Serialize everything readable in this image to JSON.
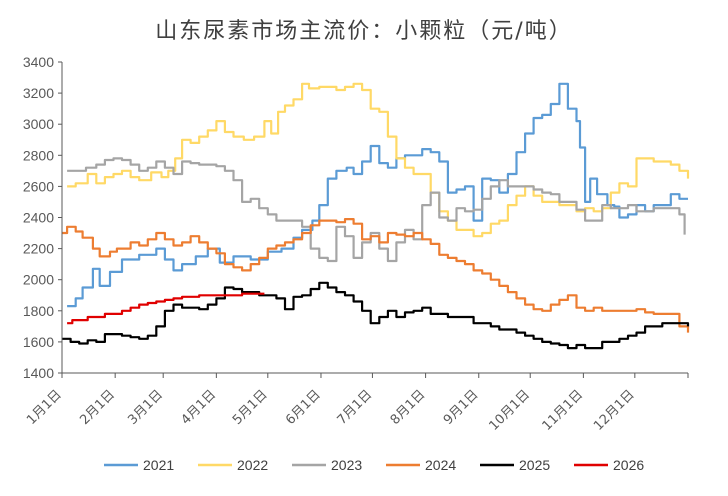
{
  "chart_data": {
    "type": "line",
    "title": "山东尿素市场主流价：小颗粒（元/吨）",
    "xlabel": "",
    "ylabel": "",
    "ylim": [
      1400,
      3400
    ],
    "yticks": [
      1400,
      1600,
      1800,
      2000,
      2200,
      2400,
      2600,
      2800,
      3000,
      3200,
      3400
    ],
    "xlim": [
      0,
      365
    ],
    "xticks": [
      {
        "day": 0,
        "label": "1月1日"
      },
      {
        "day": 31,
        "label": "2月1日"
      },
      {
        "day": 59,
        "label": "3月1日"
      },
      {
        "day": 90,
        "label": "4月1日"
      },
      {
        "day": 120,
        "label": "5月1日"
      },
      {
        "day": 151,
        "label": "6月1日"
      },
      {
        "day": 181,
        "label": "7月1日"
      },
      {
        "day": 212,
        "label": "8月1日"
      },
      {
        "day": 243,
        "label": "9月1日"
      },
      {
        "day": 273,
        "label": "10月1日"
      },
      {
        "day": 304,
        "label": "11月1日"
      },
      {
        "day": 334,
        "label": "12月1日"
      }
    ],
    "legend_position": "bottom",
    "series": [
      {
        "name": "2021",
        "color": "#5B9BD5",
        "x": [
          3,
          8,
          12,
          18,
          22,
          28,
          35,
          45,
          55,
          60,
          65,
          70,
          78,
          85,
          92,
          100,
          110,
          120,
          128,
          135,
          140,
          146,
          150,
          155,
          160,
          166,
          170,
          175,
          180,
          185,
          190,
          195,
          200,
          205,
          210,
          215,
          220,
          225,
          230,
          235,
          240,
          245,
          250,
          255,
          260,
          265,
          270,
          275,
          280,
          285,
          290,
          295,
          300,
          302,
          305,
          308,
          312,
          318,
          322,
          325,
          330,
          335,
          340,
          345,
          350,
          355,
          360,
          365
        ],
        "y": [
          1830,
          1880,
          1950,
          2070,
          1960,
          2050,
          2130,
          2160,
          2200,
          2130,
          2060,
          2100,
          2150,
          2200,
          2110,
          2150,
          2130,
          2180,
          2200,
          2270,
          2320,
          2380,
          2480,
          2650,
          2700,
          2720,
          2680,
          2760,
          2860,
          2750,
          2720,
          2780,
          2800,
          2800,
          2840,
          2820,
          2760,
          2560,
          2580,
          2600,
          2380,
          2650,
          2640,
          2560,
          2680,
          2820,
          2940,
          3040,
          3060,
          3130,
          3260,
          3100,
          3020,
          2850,
          2500,
          2650,
          2550,
          2480,
          2470,
          2400,
          2420,
          2480,
          2440,
          2480,
          2480,
          2550,
          2520,
          2520
        ]
      },
      {
        "name": "2022",
        "color": "#FFD966",
        "x": [
          3,
          8,
          15,
          20,
          25,
          30,
          35,
          40,
          45,
          52,
          58,
          62,
          66,
          70,
          75,
          80,
          85,
          90,
          95,
          100,
          106,
          112,
          118,
          122,
          126,
          130,
          135,
          140,
          144,
          150,
          155,
          160,
          165,
          170,
          175,
          180,
          185,
          190,
          195,
          200,
          205,
          210,
          215,
          220,
          225,
          230,
          235,
          240,
          245,
          250,
          255,
          260,
          265,
          270,
          275,
          280,
          285,
          290,
          295,
          300,
          305,
          310,
          315,
          320,
          325,
          330,
          335,
          340,
          345,
          350,
          355,
          360,
          365
        ],
        "y": [
          2600,
          2620,
          2680,
          2620,
          2660,
          2680,
          2700,
          2660,
          2640,
          2690,
          2660,
          2700,
          2780,
          2900,
          2880,
          2920,
          2960,
          3020,
          2950,
          2920,
          2900,
          2920,
          3020,
          2940,
          3080,
          3120,
          3160,
          3260,
          3230,
          3240,
          3240,
          3220,
          3240,
          3260,
          3220,
          3100,
          3080,
          2920,
          2780,
          2720,
          2680,
          2680,
          2560,
          2440,
          2380,
          2320,
          2320,
          2280,
          2300,
          2360,
          2380,
          2480,
          2540,
          2600,
          2540,
          2500,
          2500,
          2480,
          2480,
          2440,
          2460,
          2440,
          2460,
          2560,
          2620,
          2600,
          2780,
          2780,
          2760,
          2760,
          2740,
          2700,
          2650
        ]
      },
      {
        "name": "2023",
        "color": "#A5A5A5",
        "x": [
          3,
          8,
          14,
          20,
          25,
          30,
          35,
          40,
          45,
          50,
          55,
          60,
          65,
          70,
          75,
          80,
          85,
          90,
          95,
          100,
          105,
          110,
          115,
          120,
          125,
          130,
          135,
          140,
          145,
          150,
          155,
          160,
          165,
          170,
          175,
          180,
          185,
          190,
          195,
          200,
          205,
          210,
          215,
          220,
          225,
          230,
          235,
          240,
          245,
          250,
          255,
          260,
          265,
          270,
          275,
          280,
          285,
          290,
          295,
          300,
          305,
          310,
          315,
          320,
          325,
          330,
          335,
          340,
          345,
          350,
          355,
          360,
          363
        ],
        "y": [
          2700,
          2700,
          2720,
          2740,
          2770,
          2780,
          2770,
          2740,
          2700,
          2720,
          2760,
          2720,
          2680,
          2760,
          2750,
          2740,
          2740,
          2730,
          2700,
          2640,
          2500,
          2520,
          2460,
          2420,
          2380,
          2380,
          2380,
          2340,
          2200,
          2140,
          2120,
          2340,
          2280,
          2140,
          2240,
          2300,
          2200,
          2120,
          2240,
          2320,
          2260,
          2480,
          2560,
          2400,
          2380,
          2460,
          2440,
          2450,
          2520,
          2600,
          2640,
          2600,
          2600,
          2600,
          2580,
          2560,
          2550,
          2500,
          2500,
          2450,
          2380,
          2380,
          2480,
          2460,
          2460,
          2480,
          2440,
          2440,
          2460,
          2460,
          2460,
          2420,
          2290
        ]
      },
      {
        "name": "2024",
        "color": "#ED7D31",
        "x": [
          0,
          3,
          8,
          12,
          18,
          22,
          28,
          32,
          35,
          40,
          45,
          50,
          55,
          60,
          65,
          70,
          75,
          80,
          85,
          90,
          95,
          100,
          105,
          110,
          115,
          120,
          125,
          130,
          135,
          140,
          145,
          150,
          155,
          160,
          165,
          170,
          175,
          180,
          185,
          190,
          195,
          200,
          205,
          210,
          215,
          220,
          225,
          230,
          235,
          240,
          245,
          250,
          255,
          260,
          265,
          270,
          275,
          280,
          285,
          290,
          295,
          300,
          305,
          310,
          315,
          320,
          325,
          330,
          335,
          340,
          345,
          350,
          355,
          360,
          365
        ],
        "y": [
          2300,
          2340,
          2310,
          2270,
          2200,
          2150,
          2180,
          2200,
          2200,
          2240,
          2220,
          2260,
          2300,
          2260,
          2220,
          2240,
          2280,
          2240,
          2200,
          2170,
          2100,
          2080,
          2060,
          2100,
          2140,
          2200,
          2220,
          2240,
          2260,
          2300,
          2350,
          2380,
          2380,
          2370,
          2390,
          2360,
          2260,
          2280,
          2240,
          2300,
          2290,
          2280,
          2300,
          2260,
          2230,
          2160,
          2140,
          2120,
          2100,
          2060,
          2040,
          2000,
          1960,
          1920,
          1880,
          1840,
          1810,
          1800,
          1840,
          1870,
          1900,
          1820,
          1800,
          1820,
          1800,
          1800,
          1800,
          1800,
          1810,
          1790,
          1780,
          1780,
          1780,
          1700,
          1660
        ]
      },
      {
        "name": "2025",
        "color": "#000000",
        "x": [
          0,
          5,
          10,
          15,
          20,
          25,
          30,
          35,
          40,
          45,
          50,
          55,
          60,
          65,
          70,
          75,
          80,
          85,
          90,
          95,
          100,
          105,
          110,
          115,
          120,
          125,
          130,
          135,
          140,
          145,
          150,
          155,
          160,
          165,
          170,
          175,
          180,
          185,
          190,
          195,
          200,
          205,
          210,
          215,
          220,
          225,
          230,
          235,
          240,
          245,
          250,
          255,
          260,
          265,
          270,
          275,
          280,
          285,
          290,
          295,
          300,
          305,
          310,
          315,
          320,
          325,
          330,
          335,
          340,
          345,
          350,
          355,
          360,
          365
        ],
        "y": [
          1620,
          1600,
          1590,
          1610,
          1600,
          1650,
          1650,
          1640,
          1630,
          1620,
          1640,
          1700,
          1800,
          1840,
          1820,
          1820,
          1810,
          1840,
          1880,
          1950,
          1940,
          1920,
          1920,
          1900,
          1900,
          1880,
          1810,
          1890,
          1900,
          1940,
          1980,
          1950,
          1920,
          1900,
          1860,
          1800,
          1720,
          1760,
          1800,
          1760,
          1790,
          1800,
          1820,
          1780,
          1780,
          1760,
          1760,
          1760,
          1720,
          1720,
          1700,
          1680,
          1680,
          1660,
          1640,
          1620,
          1600,
          1590,
          1580,
          1560,
          1580,
          1560,
          1560,
          1600,
          1600,
          1620,
          1640,
          1660,
          1700,
          1700,
          1720,
          1720,
          1720,
          1700
        ]
      },
      {
        "name": "2026",
        "color": "#E00000",
        "x": [
          3,
          6,
          10,
          15,
          20,
          25,
          30,
          35,
          40,
          45,
          50,
          55,
          60,
          65,
          70,
          75,
          80,
          85,
          90,
          95,
          100,
          105,
          110,
          115,
          118
        ],
        "y": [
          1720,
          1740,
          1740,
          1760,
          1760,
          1780,
          1780,
          1800,
          1820,
          1840,
          1850,
          1860,
          1870,
          1880,
          1890,
          1890,
          1900,
          1900,
          1900,
          1900,
          1900,
          1910,
          1910,
          1910,
          1910
        ]
      }
    ]
  }
}
